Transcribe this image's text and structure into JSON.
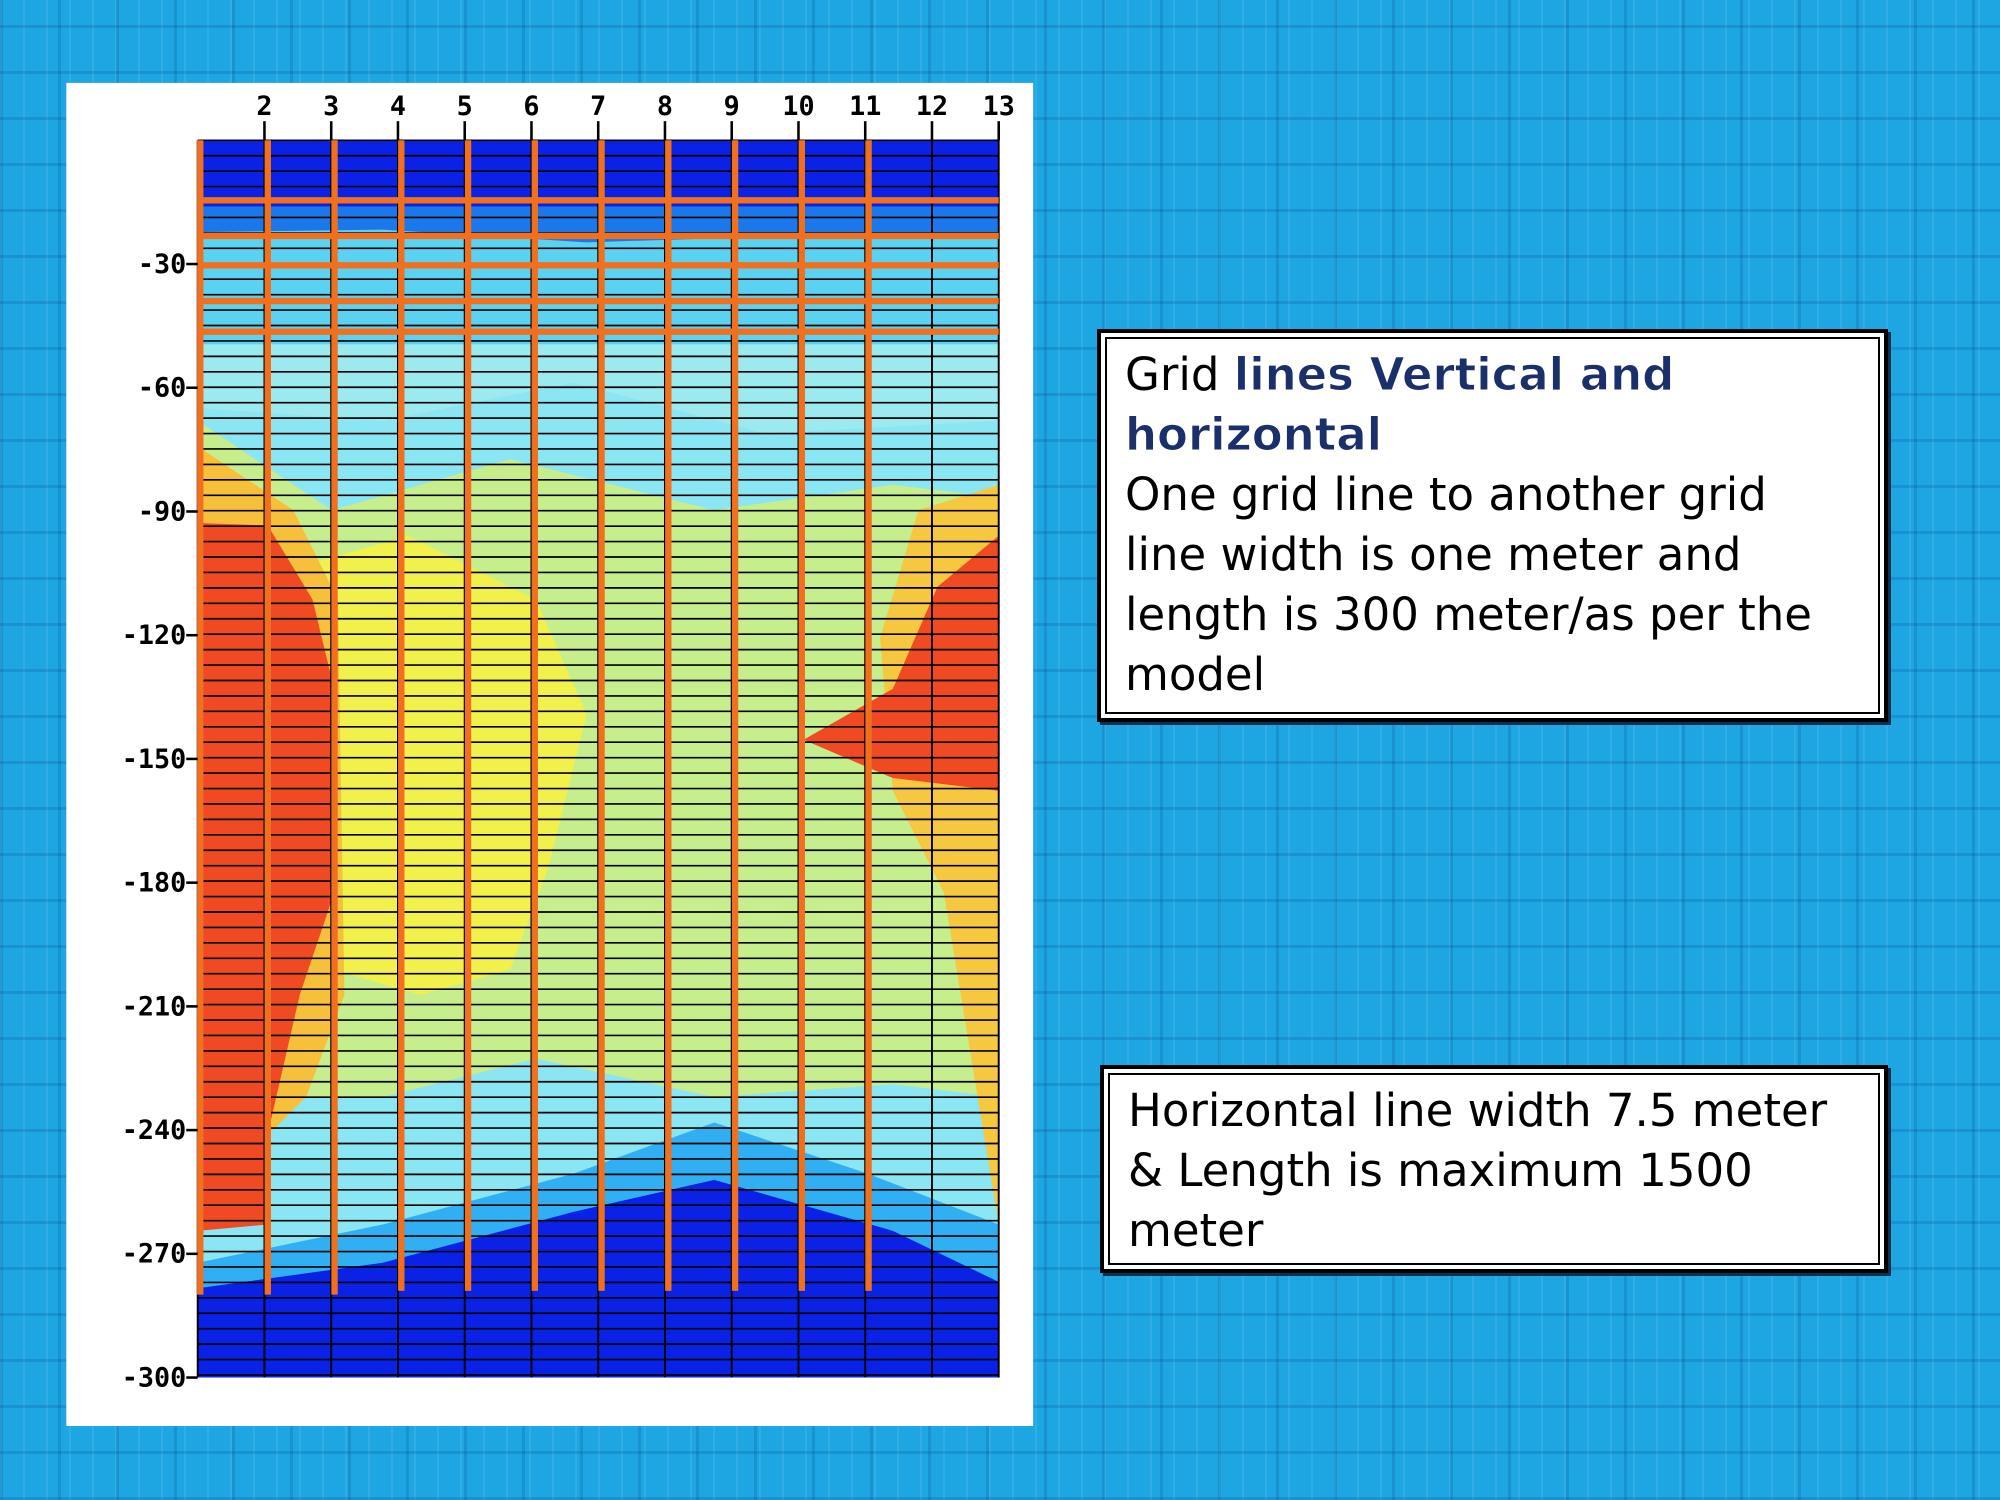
{
  "figure": {
    "x_labels": [
      "2",
      "3",
      "4",
      "5",
      "6",
      "7",
      "8",
      "9",
      "10",
      "11",
      "12",
      "13"
    ],
    "y_labels": [
      "-30",
      "-60",
      "-90",
      "-120",
      "-150",
      "-180",
      "-210",
      "-240",
      "-270",
      "-300"
    ]
  },
  "box1": {
    "heading_lead": "Grid",
    "heading": "lines Vertical and horizontal",
    "body": "One grid line to another grid line width is one meter and length is 300 meter/as per the model"
  },
  "box2": {
    "body": "Horizontal line width 7.5 meter & Length is maximum 1500 meter"
  }
}
